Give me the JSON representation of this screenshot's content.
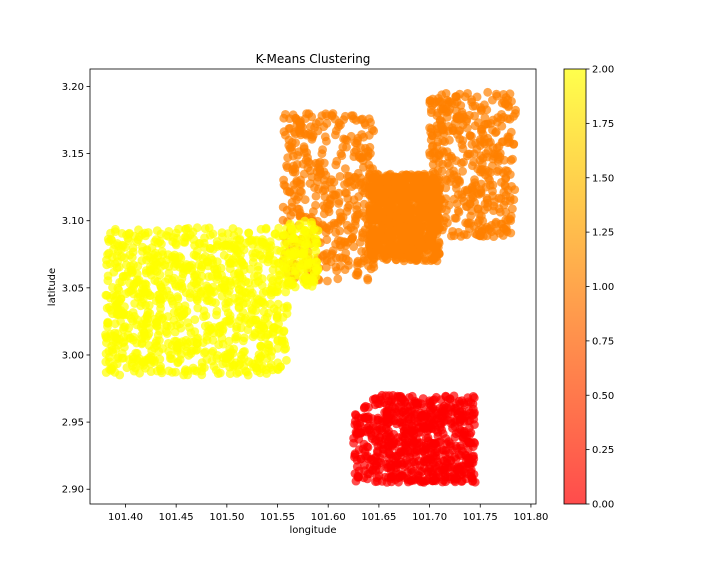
{
  "chart_data": {
    "type": "scatter",
    "title": "K-Means Clustering",
    "xlabel": "longitude",
    "ylabel": "latitude",
    "xlim": [
      101.365,
      101.805
    ],
    "ylim": [
      2.889,
      3.213
    ],
    "xticks": [
      101.4,
      101.45,
      101.5,
      101.55,
      101.6,
      101.65,
      101.7,
      101.75,
      101.8
    ],
    "xtick_labels": [
      "101.40",
      "101.45",
      "101.50",
      "101.55",
      "101.60",
      "101.65",
      "101.70",
      "101.75",
      "101.80"
    ],
    "yticks": [
      2.9,
      2.95,
      3.0,
      3.05,
      3.1,
      3.15,
      3.2
    ],
    "ytick_labels": [
      "2.90",
      "2.95",
      "3.00",
      "3.05",
      "3.10",
      "3.15",
      "3.20"
    ],
    "grid": false,
    "colormap": "autumn",
    "point_alpha": 0.7,
    "colorbar": {
      "range": [
        0.0,
        2.0
      ],
      "ticks": [
        0.0,
        0.25,
        0.5,
        0.75,
        1.0,
        1.25,
        1.5,
        1.75,
        2.0
      ],
      "tick_labels": [
        "0.00",
        "0.25",
        "0.50",
        "0.75",
        "1.00",
        "1.25",
        "1.50",
        "1.75",
        "2.00"
      ],
      "color_low": "#ff0000",
      "color_high": "#ffff00"
    },
    "clusters": [
      {
        "label": 0,
        "color": "#ff0000",
        "regions": [
          {
            "x": [
              101.625,
              101.745
            ],
            "y": [
              2.905,
              2.97
            ],
            "count": 650
          }
        ]
      },
      {
        "label": 1,
        "color": "#ff8000",
        "regions": [
          {
            "x": [
              101.555,
              101.625
            ],
            "y": [
              3.055,
              3.18
            ],
            "count": 320
          },
          {
            "x": [
              101.625,
              101.645
            ],
            "y": [
              3.055,
              3.18
            ],
            "count": 110
          },
          {
            "x": [
              101.7,
              101.785
            ],
            "y": [
              3.088,
              3.196
            ],
            "count": 420
          },
          {
            "x": [
              101.64,
              101.71
            ],
            "y": [
              3.07,
              3.135
            ],
            "count": 900
          }
        ]
      },
      {
        "label": 2,
        "color": "#ffff00",
        "regions": [
          {
            "x": [
              101.38,
              101.56
            ],
            "y": [
              2.985,
              3.095
            ],
            "count": 950
          },
          {
            "x": [
              101.56,
              101.59
            ],
            "y": [
              3.05,
              3.1
            ],
            "count": 110
          }
        ]
      }
    ]
  }
}
